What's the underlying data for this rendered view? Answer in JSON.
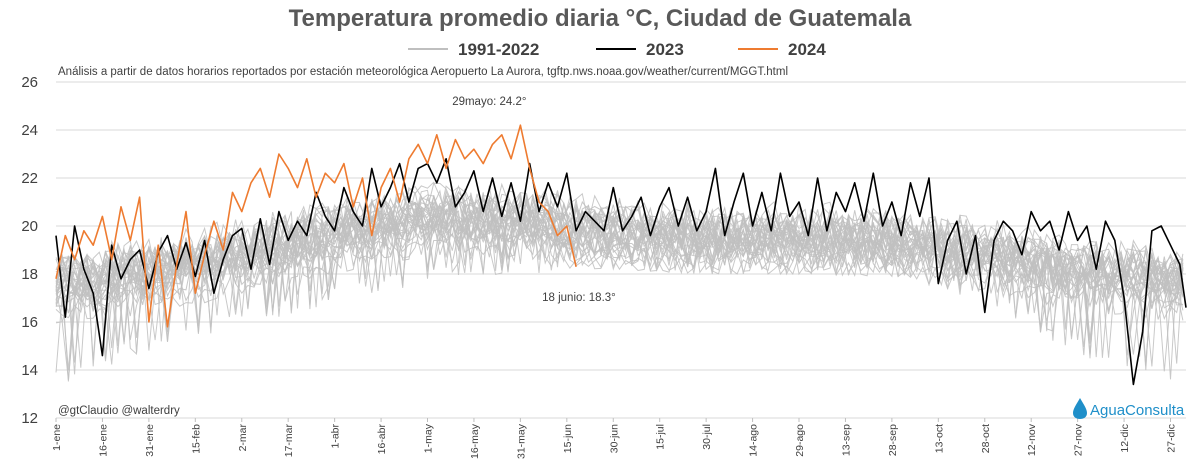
{
  "chart_data": {
    "type": "line",
    "title": "Temperatura promedio diaria °C, Ciudad de Guatemala",
    "subtitle": "Análisis a partir de datos horarios reportados por estación meteorológica Aeropuerto La Aurora, tgftp.nws.noaa.gov/weather/current/MGGT.html",
    "ylim": [
      12,
      26
    ],
    "y_ticks": [
      "12",
      "14",
      "16",
      "18",
      "20",
      "22",
      "24",
      "26"
    ],
    "x_range_days": [
      1,
      366
    ],
    "x_ticks": [
      {
        "label": "1-ene",
        "day": 1
      },
      {
        "label": "16-ene",
        "day": 16
      },
      {
        "label": "31-ene",
        "day": 31
      },
      {
        "label": "15-feb",
        "day": 46
      },
      {
        "label": "2-mar",
        "day": 61
      },
      {
        "label": "17-mar",
        "day": 76
      },
      {
        "label": "1-abr",
        "day": 91
      },
      {
        "label": "16-abr",
        "day": 106
      },
      {
        "label": "1-may",
        "day": 121
      },
      {
        "label": "16-may",
        "day": 136
      },
      {
        "label": "31-may",
        "day": 151
      },
      {
        "label": "15-jun",
        "day": 166
      },
      {
        "label": "30-jun",
        "day": 181
      },
      {
        "label": "15-jul",
        "day": 196
      },
      {
        "label": "30-jul",
        "day": 211
      },
      {
        "label": "14-ago",
        "day": 226
      },
      {
        "label": "29-ago",
        "day": 241
      },
      {
        "label": "13-sep",
        "day": 256
      },
      {
        "label": "28-sep",
        "day": 271
      },
      {
        "label": "13-oct",
        "day": 286
      },
      {
        "label": "28-oct",
        "day": 301
      },
      {
        "label": "12-nov",
        "day": 316
      },
      {
        "label": "27-nov",
        "day": 331
      },
      {
        "label": "12-dic",
        "day": 346
      },
      {
        "label": "27-dic",
        "day": 361
      }
    ],
    "legend": {
      "placement": "top-center"
    },
    "grid": {
      "horizontal": true,
      "vertical": false
    },
    "series": [
      {
        "name": "1991-2022",
        "color": "#bfbfbf",
        "note": "32 años; se representa la banda típica por fecha",
        "band_days": [
          1,
          31,
          61,
          91,
          121,
          151,
          181,
          211,
          241,
          271,
          301,
          331,
          366
        ],
        "band_low": [
          13.2,
          14.8,
          15.8,
          16.8,
          17.6,
          18.0,
          18.2,
          18.0,
          18.0,
          17.9,
          16.8,
          14.6,
          13.4
        ],
        "band_mid": [
          17.4,
          18.0,
          18.8,
          19.6,
          20.3,
          20.1,
          19.6,
          19.4,
          19.4,
          19.3,
          18.8,
          18.0,
          17.6
        ],
        "band_high": [
          20.4,
          20.8,
          21.6,
          22.6,
          23.4,
          22.4,
          21.2,
          21.0,
          21.2,
          21.0,
          20.8,
          20.4,
          20.6
        ]
      },
      {
        "name": "2023",
        "color": "#000000",
        "x": [
          1,
          4,
          7,
          10,
          13,
          16,
          19,
          22,
          25,
          28,
          31,
          34,
          37,
          40,
          43,
          46,
          49,
          52,
          55,
          58,
          61,
          64,
          67,
          70,
          73,
          76,
          79,
          82,
          85,
          88,
          91,
          94,
          97,
          100,
          103,
          106,
          109,
          112,
          115,
          118,
          121,
          124,
          127,
          130,
          133,
          136,
          139,
          142,
          145,
          148,
          151,
          154,
          157,
          160,
          163,
          166,
          169,
          172,
          175,
          178,
          181,
          184,
          187,
          190,
          193,
          196,
          199,
          202,
          205,
          208,
          211,
          214,
          217,
          220,
          223,
          226,
          229,
          232,
          235,
          238,
          241,
          244,
          247,
          250,
          253,
          256,
          259,
          262,
          265,
          268,
          271,
          274,
          277,
          280,
          283,
          286,
          289,
          292,
          295,
          298,
          301,
          304,
          307,
          310,
          313,
          316,
          319,
          322,
          325,
          328,
          331,
          334,
          337,
          340,
          343,
          346,
          349,
          352,
          355,
          358,
          361,
          364,
          366
        ],
        "y": [
          19.6,
          16.2,
          20.0,
          18.2,
          17.2,
          14.6,
          19.2,
          17.8,
          18.6,
          19.0,
          17.4,
          18.9,
          19.6,
          18.2,
          19.3,
          17.9,
          19.4,
          17.2,
          18.6,
          19.6,
          19.9,
          18.2,
          20.3,
          18.4,
          20.6,
          19.4,
          20.2,
          19.6,
          21.4,
          20.4,
          19.8,
          21.6,
          20.6,
          20.0,
          22.4,
          20.8,
          21.6,
          22.6,
          21.0,
          22.4,
          22.6,
          21.8,
          22.8,
          20.8,
          21.4,
          22.3,
          20.6,
          22.0,
          20.4,
          21.8,
          20.2,
          22.6,
          20.6,
          21.8,
          20.8,
          22.2,
          19.8,
          20.6,
          20.2,
          19.8,
          21.6,
          19.8,
          20.4,
          21.2,
          19.6,
          20.8,
          21.6,
          20.0,
          21.2,
          19.8,
          20.6,
          22.4,
          19.6,
          21.0,
          22.2,
          20.0,
          21.4,
          19.8,
          22.2,
          20.4,
          21.0,
          19.6,
          22.0,
          19.8,
          21.4,
          20.6,
          21.8,
          20.2,
          22.2,
          20.0,
          21.0,
          19.6,
          21.8,
          20.4,
          22.0,
          17.6,
          19.4,
          20.2,
          18.0,
          19.6,
          16.4,
          19.4,
          20.2,
          19.8,
          18.8,
          20.6,
          19.8,
          20.2,
          19.0,
          20.6,
          19.4,
          20.0,
          18.2,
          20.2,
          19.4,
          17.0,
          13.4,
          15.6,
          19.8,
          20.0,
          19.2,
          18.4,
          16.6
        ]
      },
      {
        "name": "2024",
        "color": "#ee7b30",
        "x": [
          1,
          4,
          7,
          10,
          13,
          16,
          19,
          22,
          25,
          28,
          31,
          34,
          37,
          40,
          43,
          46,
          49,
          52,
          55,
          58,
          61,
          64,
          67,
          70,
          73,
          76,
          79,
          82,
          85,
          88,
          91,
          94,
          97,
          100,
          103,
          106,
          109,
          112,
          115,
          118,
          121,
          124,
          127,
          130,
          133,
          136,
          139,
          142,
          145,
          148,
          151,
          154,
          157,
          160,
          163,
          166,
          169
        ],
        "y": [
          17.8,
          19.6,
          18.6,
          19.8,
          19.2,
          20.4,
          18.6,
          20.8,
          19.4,
          21.2,
          16.0,
          19.2,
          15.8,
          18.4,
          20.6,
          17.2,
          18.8,
          20.2,
          19.0,
          21.4,
          20.6,
          21.8,
          22.4,
          21.2,
          23.0,
          22.4,
          21.6,
          22.8,
          21.2,
          22.2,
          21.8,
          22.6,
          20.8,
          22.0,
          19.6,
          21.6,
          22.4,
          21.0,
          22.8,
          23.4,
          22.6,
          23.8,
          22.4,
          23.6,
          22.8,
          23.2,
          22.6,
          23.4,
          23.8,
          22.8,
          24.2,
          22.4,
          21.0,
          20.6,
          19.6,
          20.0,
          18.3
        ]
      }
    ],
    "annotations": [
      {
        "text": "29mayo: 24.2°",
        "day": 149,
        "value": 24.2
      },
      {
        "text": "18 junio: 18.3°",
        "day": 169,
        "value": 18.3
      }
    ]
  },
  "credit": "@gtClaudio @walterdry",
  "logo": {
    "text": "AguaConsulta",
    "icon": "water-drop-icon",
    "color": "#1f8fc9"
  }
}
